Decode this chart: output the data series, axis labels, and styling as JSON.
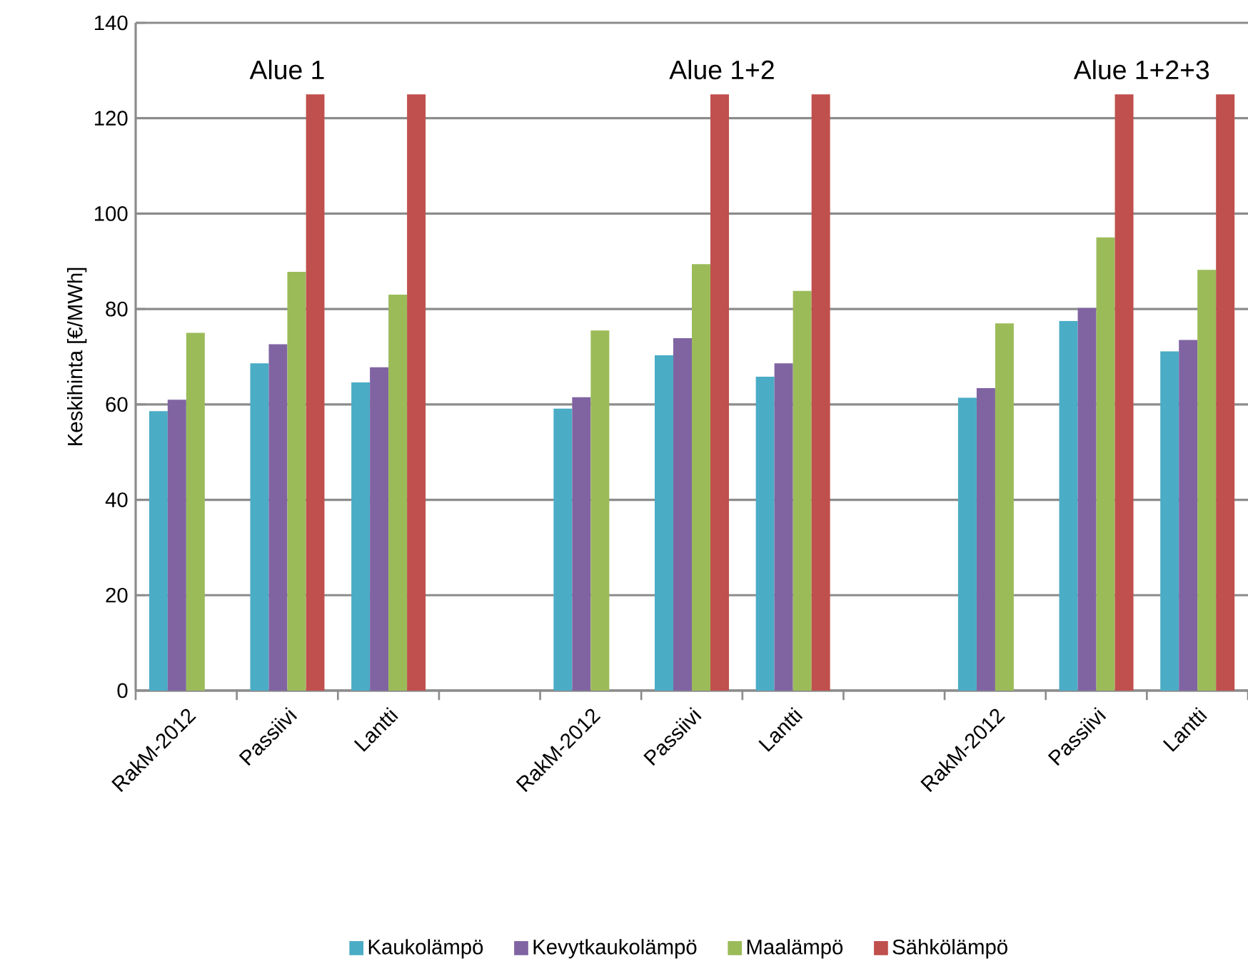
{
  "chart_data": {
    "type": "bar",
    "ylabel": "Keskihinta [€/MWh]",
    "annotations": [
      "Alue 1",
      "Alue 1+2",
      "Alue 1+2+3"
    ],
    "categories": [
      "RakM-2012",
      "Passiivi",
      "Lantti",
      null,
      "RakM-2012",
      "Passiivi",
      "Lantti",
      null,
      "RakM-2012",
      "Passiivi",
      "Lantti"
    ],
    "series": [
      {
        "name": "Kaukolämpö",
        "color": "#4bacc6",
        "values": [
          58.6,
          68.6,
          64.6,
          null,
          59.1,
          70.3,
          65.8,
          null,
          61.4,
          77.5,
          71.1
        ]
      },
      {
        "name": "Kevytkaukolämpö",
        "color": "#8064a2",
        "values": [
          61.0,
          72.6,
          67.8,
          null,
          61.5,
          73.9,
          68.6,
          null,
          63.4,
          80.2,
          73.5
        ]
      },
      {
        "name": "Maalämpö",
        "color": "#9bbb59",
        "values": [
          75.0,
          87.8,
          83.0,
          null,
          75.5,
          89.4,
          83.8,
          null,
          77.0,
          95.0,
          88.2
        ]
      },
      {
        "name": "Sähkölämpö",
        "color": "#c0504d",
        "values": [
          null,
          125,
          125,
          null,
          null,
          125,
          125,
          null,
          null,
          125,
          125
        ]
      }
    ],
    "ylim": [
      0,
      140
    ],
    "yticks": [
      0,
      20,
      40,
      60,
      80,
      100,
      120,
      140
    ],
    "grid": "y",
    "legend": "bottom"
  }
}
